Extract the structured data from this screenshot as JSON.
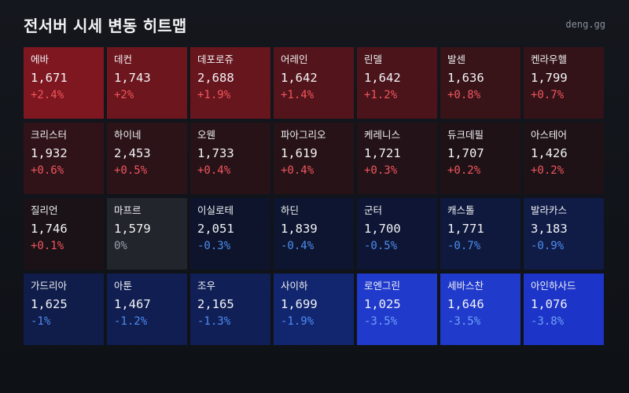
{
  "header": {
    "title": "전서버 시세 변동 히트맵",
    "site": "deng.gg"
  },
  "chart_data": {
    "type": "heatmap",
    "title": "전서버 시세 변동 히트맵",
    "columns": 7,
    "cells": [
      {
        "name": "에바",
        "price": "1,671",
        "change": 2.4,
        "label": "+2.4%"
      },
      {
        "name": "데컨",
        "price": "1,743",
        "change": 2.0,
        "label": "+2%"
      },
      {
        "name": "데포로쥬",
        "price": "2,688",
        "change": 1.9,
        "label": "+1.9%"
      },
      {
        "name": "어레인",
        "price": "1,642",
        "change": 1.4,
        "label": "+1.4%"
      },
      {
        "name": "린델",
        "price": "1,642",
        "change": 1.2,
        "label": "+1.2%"
      },
      {
        "name": "발센",
        "price": "1,636",
        "change": 0.8,
        "label": "+0.8%"
      },
      {
        "name": "켄라우헬",
        "price": "1,799",
        "change": 0.7,
        "label": "+0.7%"
      },
      {
        "name": "크리스터",
        "price": "1,932",
        "change": 0.6,
        "label": "+0.6%"
      },
      {
        "name": "하이네",
        "price": "2,453",
        "change": 0.5,
        "label": "+0.5%"
      },
      {
        "name": "오웬",
        "price": "1,733",
        "change": 0.4,
        "label": "+0.4%"
      },
      {
        "name": "파아그리오",
        "price": "1,619",
        "change": 0.4,
        "label": "+0.4%"
      },
      {
        "name": "케레니스",
        "price": "1,721",
        "change": 0.3,
        "label": "+0.3%"
      },
      {
        "name": "듀크데필",
        "price": "1,707",
        "change": 0.2,
        "label": "+0.2%"
      },
      {
        "name": "아스테어",
        "price": "1,426",
        "change": 0.2,
        "label": "+0.2%"
      },
      {
        "name": "질리언",
        "price": "1,746",
        "change": 0.1,
        "label": "+0.1%"
      },
      {
        "name": "마프르",
        "price": "1,579",
        "change": 0.0,
        "label": "0%"
      },
      {
        "name": "이실로테",
        "price": "2,051",
        "change": -0.3,
        "label": "-0.3%"
      },
      {
        "name": "하딘",
        "price": "1,839",
        "change": -0.4,
        "label": "-0.4%"
      },
      {
        "name": "군터",
        "price": "1,700",
        "change": -0.5,
        "label": "-0.5%"
      },
      {
        "name": "캐스톨",
        "price": "1,771",
        "change": -0.7,
        "label": "-0.7%"
      },
      {
        "name": "발라카스",
        "price": "3,183",
        "change": -0.9,
        "label": "-0.9%"
      },
      {
        "name": "가드리아",
        "price": "1,625",
        "change": -1.0,
        "label": "-1%"
      },
      {
        "name": "아툰",
        "price": "1,467",
        "change": -1.2,
        "label": "-1.2%"
      },
      {
        "name": "조우",
        "price": "2,165",
        "change": -1.3,
        "label": "-1.3%"
      },
      {
        "name": "사이하",
        "price": "1,699",
        "change": -1.9,
        "label": "-1.9%"
      },
      {
        "name": "로엔그린",
        "price": "1,025",
        "change": -3.5,
        "label": "-3.5%"
      },
      {
        "name": "세바스찬",
        "price": "1,646",
        "change": -3.5,
        "label": "-3.5%"
      },
      {
        "name": "아인하사드",
        "price": "1,076",
        "change": -3.8,
        "label": "-3.8%"
      }
    ],
    "colors": {
      "positive_text": "#f2555e",
      "negative_text": "#4d8df2",
      "negative_text_strong": "#6ea2f5",
      "neutral_text": "#9aa0a8",
      "neutral_bg": "#22262c"
    }
  }
}
